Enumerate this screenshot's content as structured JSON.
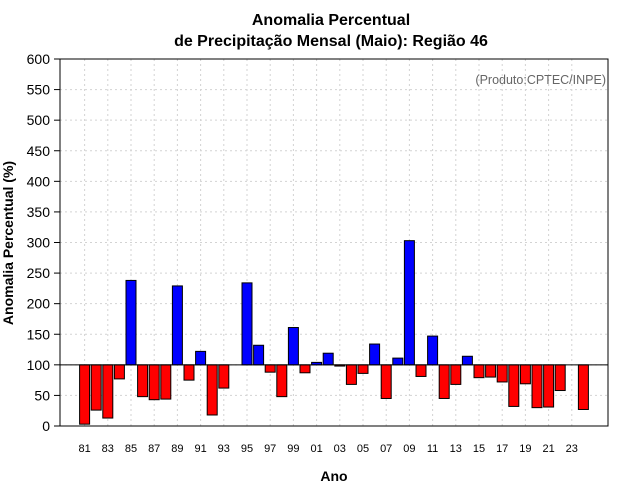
{
  "chart_data": {
    "type": "bar",
    "title": [
      "Anomalia Percentual",
      "de Precipitação Mensal (Maio): Região 46"
    ],
    "xlabel": "Ano",
    "ylabel": "Anomalia Percentual (%)",
    "credit": "(Produto:CPTEC/INPE)",
    "baseline": 100,
    "ylim": [
      0,
      600
    ],
    "yticks": [
      0,
      50,
      100,
      150,
      200,
      250,
      300,
      350,
      400,
      450,
      500,
      550,
      600
    ],
    "grid": true,
    "categories": [
      "81",
      "82",
      "83",
      "84",
      "85",
      "86",
      "87",
      "88",
      "89",
      "90",
      "91",
      "92",
      "93",
      "94",
      "95",
      "96",
      "97",
      "98",
      "99",
      "00",
      "01",
      "02",
      "03",
      "04",
      "05",
      "06",
      "07",
      "08",
      "09",
      "10",
      "11",
      "12",
      "13",
      "14",
      "15",
      "16",
      "17",
      "18",
      "19",
      "20",
      "21",
      "22",
      "23",
      "24"
    ],
    "xtick_labels": [
      "81",
      "83",
      "85",
      "87",
      "89",
      "91",
      "93",
      "95",
      "97",
      "99",
      "01",
      "03",
      "05",
      "07",
      "09",
      "11",
      "13",
      "15",
      "17",
      "19",
      "21",
      "23"
    ],
    "values": [
      3,
      26,
      13,
      77,
      238,
      48,
      43,
      44,
      229,
      75,
      122,
      18,
      62,
      100,
      234,
      132,
      88,
      48,
      161,
      87,
      104,
      119,
      98,
      68,
      86,
      134,
      45,
      111,
      303,
      81,
      147,
      45,
      68,
      114,
      79,
      80,
      72,
      32,
      69,
      30,
      31,
      58,
      100,
      27
    ],
    "colors": {
      "above": "#0000ff",
      "below": "#ff0000",
      "grid": "#d3d3d3",
      "axis": "#000000"
    }
  }
}
